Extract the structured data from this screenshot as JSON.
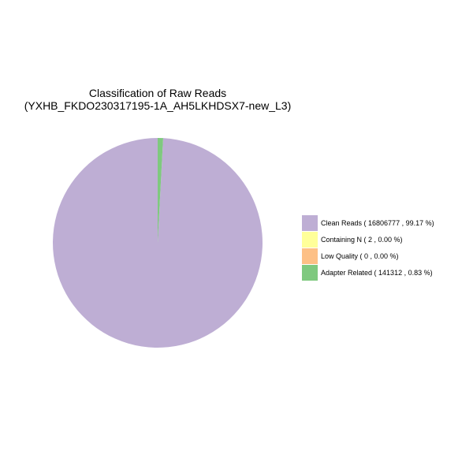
{
  "chart_data": {
    "type": "pie",
    "title": "Classification of Raw Reads",
    "subtitle": "(YXHB_FKDO230317195-1A_AH5LKHDSX7-new_L3)",
    "legend_position": "right",
    "categories": [
      "Clean Reads",
      "Containing N",
      "Low Quality",
      "Adapter Related"
    ],
    "values": [
      16806777,
      2,
      0,
      141312
    ],
    "percentages": [
      99.17,
      0.0,
      0.0,
      0.83
    ],
    "colors": [
      "#BEAED4",
      "#FFFF99",
      "#FDC086",
      "#7FC97F"
    ],
    "legend_labels": [
      "Clean Reads  ( 16806777 ,  99.17 %)",
      "Containing N  ( 2 ,  0.00 %)",
      "Low Quality  ( 0 ,  0.00 %)",
      "Adapter Related  ( 141312 ,  0.83 %)"
    ]
  }
}
